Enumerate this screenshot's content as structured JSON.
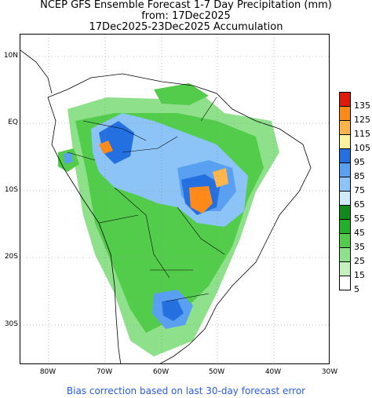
{
  "title": {
    "line1": "NCEP GFS Ensemble Forecast 1-7 Day Precipitation (mm)",
    "line2": "from: 17Dec2025",
    "line3": "17Dec2025-23Dec2025 Accumulation"
  },
  "lat_labels": [
    "10N",
    "EQ",
    "10S",
    "20S",
    "30S"
  ],
  "lon_labels": [
    "80W",
    "70W",
    "60W",
    "50W",
    "40W",
    "30W"
  ],
  "legend": {
    "levels": [
      "135",
      "125",
      "115",
      "105",
      "95",
      "85",
      "75",
      "65",
      "55",
      "45",
      "35",
      "25",
      "15",
      "5"
    ],
    "colors": [
      "#e01a0a",
      "#ff8a1a",
      "#ffb54a",
      "#fff3a0",
      "#2470e0",
      "#5aa0f2",
      "#8cc4f8",
      "#cfeaff",
      "#108a18",
      "#22b02a",
      "#52cc4a",
      "#8ee08a",
      "#c6f0c0",
      "#ffffff"
    ]
  },
  "footer": "Bias correction based on last 30-day forecast error"
}
